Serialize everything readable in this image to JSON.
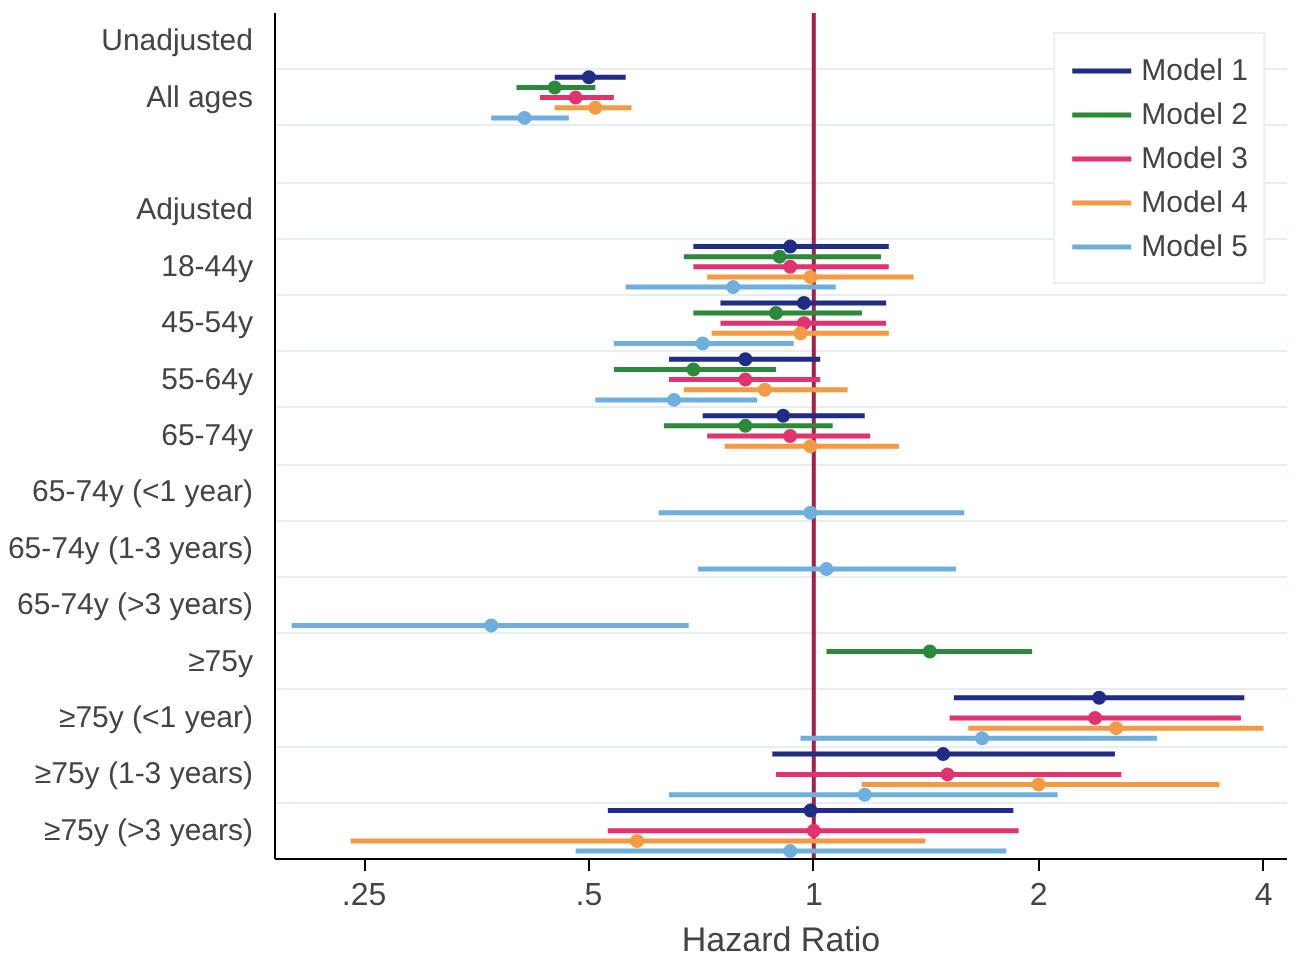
{
  "chart_data": {
    "type": "scatter",
    "orientation": "horizontal",
    "xlabel": "Hazard Ratio",
    "log": "x",
    "grid": "y",
    "legend": "top right",
    "marker": "circle",
    "xlim": [
      0.19,
      4.3
    ],
    "xticks": [
      {
        "value": 0.25,
        "label": ".25"
      },
      {
        "value": 0.5,
        "label": ".5"
      },
      1,
      2,
      4
    ],
    "ref_lines": [
      {
        "axis": "x",
        "value": 1,
        "color": "#a3204e"
      }
    ],
    "categories": [
      "Unadjusted",
      "All ages",
      null,
      "Adjusted",
      "18-44y",
      "45-54y",
      "55-64y",
      "65-74y",
      "65-74y (<1 year)",
      "65-74y (1-3 years)",
      "65-74y (>3 years)",
      "≥75y",
      "≥75y (<1 year)",
      "≥75y (1-3 years)",
      "≥75y (>3 years)"
    ],
    "series": [
      {
        "name": "Model 1",
        "color": "#1f2d86",
        "values": [
          null,
          0.5,
          null,
          null,
          0.93,
          0.97,
          0.81,
          0.91,
          null,
          null,
          null,
          null,
          2.41,
          1.49,
          0.99
        ],
        "errors": [
          null,
          [
            0.45,
            0.56
          ],
          null,
          null,
          [
            0.69,
            1.26
          ],
          [
            0.75,
            1.25
          ],
          [
            0.64,
            1.02
          ],
          [
            0.71,
            1.17
          ],
          null,
          null,
          null,
          null,
          [
            1.54,
            3.77
          ],
          [
            0.88,
            2.53
          ],
          [
            0.53,
            1.85
          ]
        ]
      },
      {
        "name": "Model 2",
        "color": "#2a8a3a",
        "values": [
          null,
          0.45,
          null,
          null,
          0.9,
          0.89,
          0.69,
          0.81,
          null,
          null,
          null,
          1.43,
          null,
          null,
          null
        ],
        "errors": [
          null,
          [
            0.4,
            0.51
          ],
          null,
          null,
          [
            0.67,
            1.23
          ],
          [
            0.69,
            1.16
          ],
          [
            0.54,
            0.89
          ],
          [
            0.63,
            1.06
          ],
          null,
          null,
          null,
          [
            1.04,
            1.96
          ],
          null,
          null,
          null
        ]
      },
      {
        "name": "Model 3",
        "color": "#e0336f",
        "values": [
          null,
          0.48,
          null,
          null,
          0.93,
          0.97,
          0.81,
          0.93,
          null,
          null,
          null,
          null,
          2.38,
          1.51,
          1.0
        ],
        "errors": [
          null,
          [
            0.43,
            0.54
          ],
          null,
          null,
          [
            0.69,
            1.26
          ],
          [
            0.75,
            1.25
          ],
          [
            0.64,
            1.02
          ],
          [
            0.72,
            1.19
          ],
          null,
          null,
          null,
          null,
          [
            1.52,
            3.73
          ],
          [
            0.89,
            2.58
          ],
          [
            0.53,
            1.88
          ]
        ]
      },
      {
        "name": "Model 4",
        "color": "#f39a45",
        "values": [
          null,
          0.51,
          null,
          null,
          0.99,
          0.96,
          0.86,
          0.99,
          null,
          null,
          null,
          null,
          2.54,
          2.0,
          0.58
        ],
        "errors": [
          null,
          [
            0.45,
            0.57
          ],
          null,
          null,
          [
            0.72,
            1.36
          ],
          [
            0.73,
            1.26
          ],
          [
            0.67,
            1.11
          ],
          [
            0.76,
            1.3
          ],
          null,
          null,
          null,
          null,
          [
            1.61,
            4.0
          ],
          [
            1.16,
            3.49
          ],
          [
            0.24,
            1.41
          ]
        ]
      },
      {
        "name": "Model 5",
        "color": "#6fafdd",
        "values": [
          null,
          0.41,
          null,
          null,
          0.78,
          0.71,
          0.65,
          null,
          0.99,
          1.04,
          0.37,
          null,
          1.68,
          1.17,
          0.93
        ],
        "errors": [
          null,
          [
            0.37,
            0.47
          ],
          null,
          null,
          [
            0.56,
            1.07
          ],
          [
            0.54,
            0.94
          ],
          [
            0.51,
            0.84
          ],
          null,
          [
            0.62,
            1.59
          ],
          [
            0.7,
            1.55
          ],
          [
            0.2,
            0.68
          ],
          null,
          [
            0.96,
            2.88
          ],
          [
            0.64,
            2.12
          ],
          [
            0.48,
            1.81
          ]
        ]
      }
    ]
  }
}
